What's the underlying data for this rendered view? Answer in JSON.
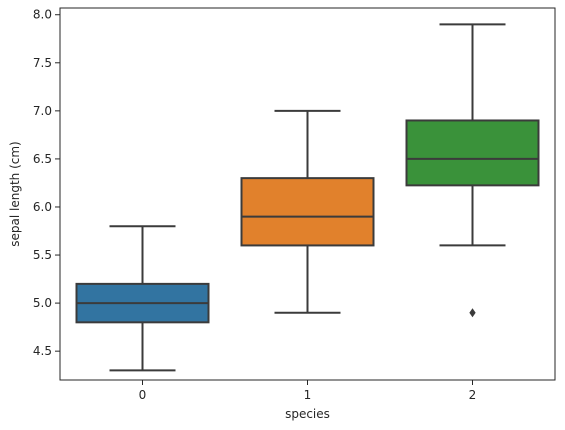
{
  "chart_data": {
    "type": "box",
    "xlabel": "species",
    "ylabel": "sepal length (cm)",
    "ylim": [
      4.2,
      8.07
    ],
    "yticks": [
      4.5,
      5.0,
      5.5,
      6.0,
      6.5,
      7.0,
      7.5,
      8.0
    ],
    "ytick_labels": [
      "4.5",
      "5.0",
      "5.5",
      "6.0",
      "6.5",
      "7.0",
      "7.5",
      "8.0"
    ],
    "categories": [
      "0",
      "1",
      "2"
    ],
    "boxes": [
      {
        "category": "0",
        "whisker_low": 4.3,
        "q1": 4.8,
        "median": 5.0,
        "q3": 5.2,
        "whisker_high": 5.8,
        "outliers": [],
        "color": "#3274a1"
      },
      {
        "category": "1",
        "whisker_low": 4.9,
        "q1": 5.6,
        "median": 5.9,
        "q3": 6.3,
        "whisker_high": 7.0,
        "outliers": [],
        "color": "#e1812c"
      },
      {
        "category": "2",
        "whisker_low": 5.6,
        "q1": 6.225,
        "median": 6.5,
        "q3": 6.9,
        "whisker_high": 7.9,
        "outliers": [
          4.9
        ],
        "color": "#3a923a"
      }
    ],
    "grid": false,
    "legend": "none"
  }
}
